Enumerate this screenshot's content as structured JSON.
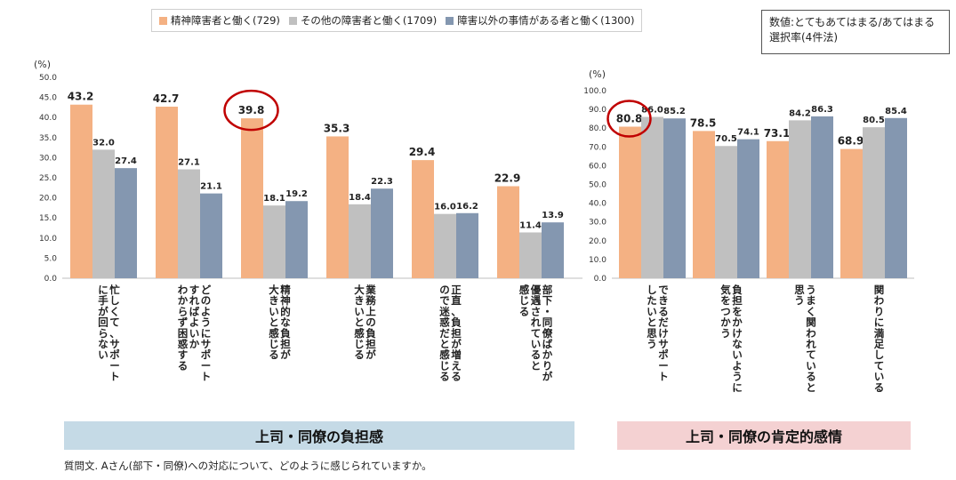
{
  "legend": {
    "items": [
      {
        "label": "精神障害者と働く(729)",
        "color": "#f4b183"
      },
      {
        "label": "その他の障害者と働く(1709)",
        "color": "#c0c0c0"
      },
      {
        "label": "障害以外の事情がある者と働く(1300)",
        "color": "#8497b0"
      }
    ]
  },
  "note": {
    "line1": "数値:とてもあてはまる/あてはまる",
    "line2": "選択率(4件法)"
  },
  "bands": {
    "left": "上司・同僚の負担感",
    "right": "上司・同僚の肯定的感情"
  },
  "question": "質問文. Aさん(部下・同僚)への対応について、どのように感じられていますか。",
  "chart_data": [
    {
      "type": "bar",
      "unit_label": "(%)",
      "ylim": [
        0,
        50
      ],
      "yticks": [
        "0.0",
        "5.0",
        "10.0",
        "15.0",
        "20.0",
        "25.0",
        "30.0",
        "35.0",
        "40.0",
        "45.0",
        "50.0"
      ],
      "categories": [
        [
          "忙しくて、サポート",
          "に手が回らない"
        ],
        [
          "どのようにサポート",
          "すればよいか",
          "わからず困惑する"
        ],
        [
          "精神的な負担が",
          "大きいと感じる"
        ],
        [
          "業務上の負担が",
          "大きいと感じる"
        ],
        [
          "正直、負担が増える",
          "ので迷惑だと感じる"
        ],
        [
          "部下・同僚ばかりが",
          "優遇されていると",
          "感じる"
        ]
      ],
      "series": [
        {
          "name": "精神障害者と働く(729)",
          "color": "#f4b183",
          "values": [
            43.2,
            42.7,
            39.8,
            35.3,
            29.4,
            22.9
          ]
        },
        {
          "name": "その他の障害者と働く(1709)",
          "color": "#c0c0c0",
          "values": [
            32.0,
            27.1,
            18.1,
            18.4,
            16.0,
            11.4
          ]
        },
        {
          "name": "障害以外の事情がある者と働く(1300)",
          "color": "#8497b0",
          "values": [
            27.4,
            21.1,
            19.2,
            22.3,
            16.2,
            13.9
          ]
        }
      ],
      "highlight": {
        "series": 0,
        "index": 2
      }
    },
    {
      "type": "bar",
      "unit_label": "(%)",
      "ylim": [
        0,
        100
      ],
      "yticks": [
        "0.0",
        "10.0",
        "20.0",
        "30.0",
        "40.0",
        "50.0",
        "60.0",
        "70.0",
        "80.0",
        "90.0",
        "100.0"
      ],
      "categories": [
        [
          "できるだけサポート",
          "したいと思う"
        ],
        [
          "負担をかけないように",
          "気をつかう"
        ],
        [
          "うまく関われていると",
          "思う"
        ],
        [
          "関わりに満足している"
        ]
      ],
      "series": [
        {
          "name": "精神障害者と働く(729)",
          "color": "#f4b183",
          "values": [
            80.8,
            78.5,
            73.1,
            68.9
          ]
        },
        {
          "name": "その他の障害者と働く(1709)",
          "color": "#c0c0c0",
          "values": [
            86.0,
            70.5,
            84.2,
            80.5
          ]
        },
        {
          "name": "障害以外の事情がある者と働く(1300)",
          "color": "#8497b0",
          "values": [
            85.2,
            74.1,
            86.3,
            85.4
          ]
        }
      ],
      "highlight": {
        "series": 0,
        "index": 0
      }
    }
  ]
}
